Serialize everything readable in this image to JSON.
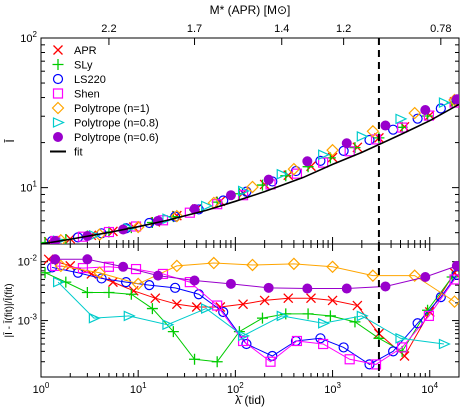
{
  "chart_data": [
    {
      "type": "scatter",
      "title": "",
      "ylabel": "Ī",
      "xscale": "log",
      "yscale": "log",
      "xlim": [
        1,
        20000
      ],
      "ylim": [
        4.2,
        100
      ],
      "grid": false,
      "legend_position": "top-left",
      "top_axis": {
        "label": "M* (APR) [M⊙]",
        "ticks": [
          {
            "lambda": 5,
            "label": "2.2"
          },
          {
            "lambda": 38,
            "label": "1.7"
          },
          {
            "lambda": 300,
            "label": "1.4"
          },
          {
            "lambda": 1300,
            "label": "1.2"
          },
          {
            "lambda": 13000,
            "label": "0.78"
          }
        ]
      },
      "vertical_line": {
        "x": 3000,
        "style": "dashed"
      },
      "series": [
        {
          "name": "APR",
          "marker": "x",
          "color": "#ff0000",
          "x": [
            1.2,
            2,
            3.3,
            5.5,
            9,
            15,
            25,
            40,
            70,
            120,
            200,
            350,
            600,
            1000,
            1800,
            3000,
            5500,
            10000,
            18000
          ],
          "y": [
            4.35,
            4.55,
            4.8,
            5.1,
            5.45,
            5.9,
            6.5,
            7.2,
            8.1,
            9.2,
            10.5,
            12.1,
            13.9,
            15.9,
            18.6,
            21.5,
            25.5,
            30.5,
            37.5
          ]
        },
        {
          "name": "SLy",
          "marker": "plus",
          "color": "#00cc00",
          "x": [
            1.1,
            1.8,
            3,
            5,
            8.5,
            14,
            23,
            38,
            65,
            110,
            190,
            330,
            560,
            950,
            1700,
            3000,
            5200,
            9500,
            17000
          ],
          "y": [
            4.3,
            4.5,
            4.75,
            5.05,
            5.4,
            5.85,
            6.4,
            7.1,
            8,
            9.1,
            10.4,
            12,
            13.8,
            15.8,
            18.5,
            21.5,
            25.3,
            30.1,
            36.8
          ]
        },
        {
          "name": "LS220",
          "marker": "circle-open",
          "color": "#0000ff",
          "x": [
            1.3,
            2.4,
            4.2,
            7.5,
            13,
            24,
            42,
            75,
            130,
            240,
            420,
            750,
            1300,
            2400,
            4200,
            7500,
            13000,
            19000
          ],
          "y": [
            4.4,
            4.65,
            4.95,
            5.35,
            5.8,
            6.4,
            7.15,
            8.2,
            9.4,
            11,
            12.9,
            15.1,
            17.6,
            20.8,
            24.4,
            28.9,
            33.8,
            38.2
          ]
        },
        {
          "name": "Shen",
          "marker": "square-open",
          "color": "#ff00ff",
          "x": [
            1.4,
            2.7,
            5,
            9.5,
            18,
            34,
            65,
            120,
            230,
            430,
            800,
            1500,
            2800,
            5200,
            9800,
            18000
          ],
          "y": [
            4.4,
            4.7,
            5.05,
            5.5,
            6.05,
            6.8,
            7.75,
            8.9,
            10.5,
            12.4,
            14.7,
            17.5,
            21,
            25.2,
            30.3,
            37
          ]
        },
        {
          "name": "Polytrope (n=1)",
          "marker": "diamond-open",
          "color": "#ffa500",
          "x": [
            1.6,
            4,
            10,
            25,
            60,
            150,
            400,
            1000,
            2600,
            7000,
            18000
          ],
          "y": [
            4.45,
            4.85,
            5.45,
            6.45,
            7.9,
            10.1,
            13.3,
            17.8,
            23.8,
            31.5,
            38.5
          ]
        },
        {
          "name": "Polytrope (n=0.8)",
          "marker": "triangle-right-open",
          "color": "#00cccc",
          "x": [
            1.5,
            3.5,
            8,
            20,
            50,
            120,
            300,
            800,
            2000,
            5000,
            14000
          ],
          "y": [
            4.42,
            4.8,
            5.35,
            6.2,
            7.55,
            9.5,
            12.3,
            16.6,
            22,
            28.8,
            37
          ]
        },
        {
          "name": "Polytrope (n=0.6)",
          "marker": "circle-filled",
          "color": "#9900cc",
          "x": [
            1.4,
            3,
            7,
            16,
            38,
            90,
            220,
            550,
            1400,
            3500,
            9000,
            19000
          ],
          "y": [
            4.4,
            4.75,
            5.25,
            6,
            7.2,
            8.9,
            11.3,
            15,
            19.8,
            26,
            33,
            39
          ]
        },
        {
          "name": "fit",
          "marker": "line",
          "color": "#000000",
          "x": [
            1,
            2,
            5,
            10,
            20,
            50,
            100,
            200,
            500,
            1000,
            2000,
            5000,
            10000,
            20000
          ],
          "y": [
            4.2,
            4.52,
            5.02,
            5.48,
            6.05,
            7.05,
            8.1,
            9.4,
            11.7,
            14.3,
            17.2,
            22.6,
            28,
            36
          ]
        }
      ]
    },
    {
      "type": "line",
      "xlabel": "λ̄ (tid)",
      "ylabel": "|Ī - Ī(fit)|/Ī(fit)",
      "xscale": "log",
      "yscale": "log",
      "xlim": [
        1,
        20000
      ],
      "ylim": [
        0.00011,
        0.02
      ],
      "grid": false,
      "x_ticks": [
        "10⁰",
        "10¹",
        "10²",
        "10³",
        "10⁴"
      ],
      "y_ticks": [
        "10⁻²",
        "10⁻³"
      ],
      "vertical_line": {
        "x": 3000,
        "style": "dashed"
      },
      "series": [
        {
          "name": "APR",
          "marker": "x",
          "color": "#ff0000",
          "x": [
            1.2,
            2,
            3.3,
            5.5,
            9,
            15,
            25,
            40,
            70,
            120,
            200,
            350,
            600,
            1000,
            1800,
            3000,
            5500,
            10000,
            18000
          ],
          "y": [
            0.011,
            0.0085,
            0.0062,
            0.0045,
            0.0032,
            0.0024,
            0.0019,
            0.0017,
            0.0017,
            0.0019,
            0.0022,
            0.0024,
            0.0024,
            0.0022,
            0.0018,
            0.0006,
            0.00025,
            0.0014,
            0.0065
          ]
        },
        {
          "name": "SLy",
          "marker": "plus",
          "color": "#00cc00",
          "x": [
            1.1,
            1.8,
            3,
            5,
            8.5,
            14,
            23,
            38,
            65,
            110,
            190,
            330,
            560,
            950,
            1700,
            3000,
            5200,
            9500,
            17000
          ],
          "y": [
            0.0065,
            0.0045,
            0.003,
            0.003,
            0.0028,
            0.0016,
            0.00065,
            0.00022,
            0.0002,
            0.00065,
            0.0011,
            0.0013,
            0.0013,
            0.0012,
            0.00095,
            0.0005,
            0.0003,
            0.0015,
            0.0055
          ]
        },
        {
          "name": "LS220",
          "marker": "circle-open",
          "color": "#0000ff",
          "x": [
            1.3,
            2.4,
            4.2,
            7.5,
            13,
            24,
            42,
            75,
            130,
            240,
            420,
            750,
            1300,
            2400,
            4200,
            7500,
            13000,
            19000
          ],
          "y": [
            0.008,
            0.0065,
            0.0052,
            0.0045,
            0.004,
            0.0036,
            0.0028,
            0.0014,
            0.0004,
            0.00025,
            0.00045,
            0.0005,
            0.00035,
            0.00018,
            0.0003,
            0.0009,
            0.0025,
            0.006
          ]
        },
        {
          "name": "Shen",
          "marker": "square-open",
          "color": "#ff00ff",
          "x": [
            1.4,
            2.7,
            5,
            9.5,
            18,
            34,
            65,
            120,
            230,
            430,
            800,
            1500,
            2800,
            5200,
            9800,
            18000
          ],
          "y": [
            0.0085,
            0.0078,
            0.0082,
            0.0075,
            0.0062,
            0.0045,
            0.0018,
            0.00045,
            0.0002,
            0.00045,
            0.0004,
            0.00022,
            0.00018,
            0.00035,
            0.0012,
            0.005
          ]
        },
        {
          "name": "Polytrope (n=1)",
          "marker": "diamond-open",
          "color": "#ffa500",
          "x": [
            1.6,
            4,
            10,
            25,
            60,
            150,
            400,
            1000,
            2600,
            7000,
            18000
          ],
          "y": [
            0.0085,
            0.0065,
            0.0042,
            0.0085,
            0.0095,
            0.0088,
            0.0092,
            0.0082,
            0.0058,
            0.0058,
            0.0021
          ]
        },
        {
          "name": "Polytrope (n=0.8)",
          "marker": "triangle-right-open",
          "color": "#00cccc",
          "x": [
            1.5,
            3.5,
            8,
            20,
            50,
            120,
            300,
            800,
            2000,
            5000,
            14000
          ],
          "y": [
            0.0045,
            0.0011,
            0.0012,
            0.00085,
            0.0016,
            0.00055,
            0.0012,
            0.0009,
            0.0012,
            0.0005,
            0.0004
          ]
        },
        {
          "name": "Polytrope (n=0.6)",
          "marker": "circle-filled",
          "color": "#9900cc",
          "x": [
            1.4,
            3,
            7,
            16,
            38,
            90,
            220,
            550,
            1400,
            3500,
            9000,
            19000
          ],
          "y": [
            0.011,
            0.011,
            0.0082,
            0.0058,
            0.0048,
            0.0042,
            0.0036,
            0.0035,
            0.0035,
            0.0038,
            0.0055,
            0.0085
          ]
        }
      ]
    }
  ],
  "legend": {
    "entries": [
      "APR",
      "SLy",
      "LS220",
      "Shen",
      "Polytrope (n=1)",
      "Polytrope (n=0.8)",
      "Polytrope (n=0.6)",
      "fit"
    ]
  }
}
